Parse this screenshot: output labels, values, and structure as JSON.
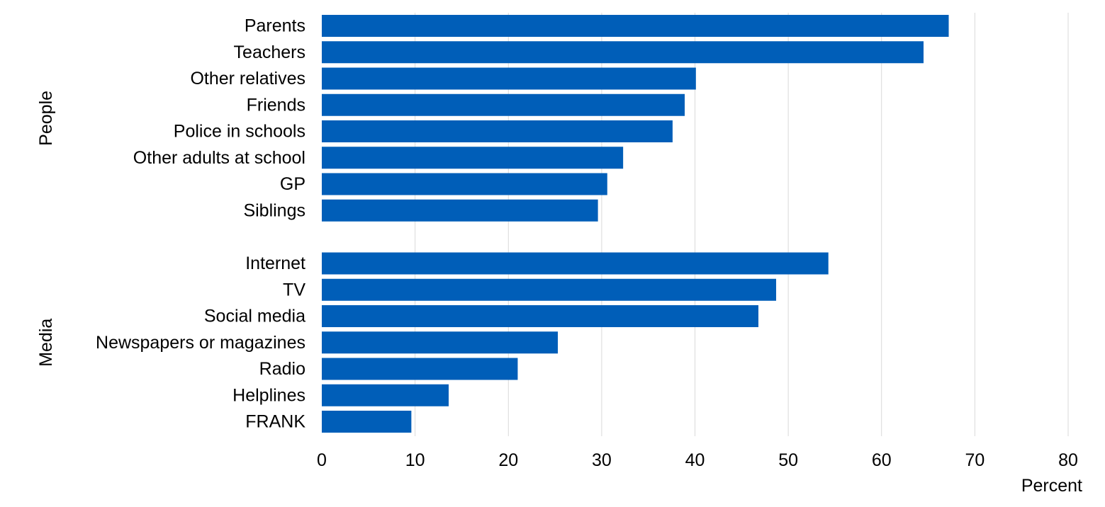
{
  "chart_data": {
    "type": "bar",
    "orientation": "horizontal",
    "xlabel": "Percent",
    "xlim": [
      0,
      80
    ],
    "xticks": [
      0,
      10,
      20,
      30,
      40,
      50,
      60,
      70,
      80
    ],
    "grid": true,
    "bar_color": "#005EB8",
    "groups": [
      {
        "name": "People",
        "categories": [
          "Parents",
          "Teachers",
          "Other relatives",
          "Friends",
          "Police in schools",
          "Other adults at school",
          "GP",
          "Siblings"
        ],
        "values": [
          67.2,
          64.5,
          40.1,
          38.9,
          37.6,
          32.3,
          30.6,
          29.6
        ]
      },
      {
        "name": "Media",
        "categories": [
          "Internet",
          "TV",
          "Social media",
          "Newspapers or magazines",
          "Radio",
          "Helplines",
          "FRANK"
        ],
        "values": [
          54.3,
          48.7,
          46.8,
          25.3,
          21.0,
          13.6,
          9.6
        ]
      }
    ]
  }
}
